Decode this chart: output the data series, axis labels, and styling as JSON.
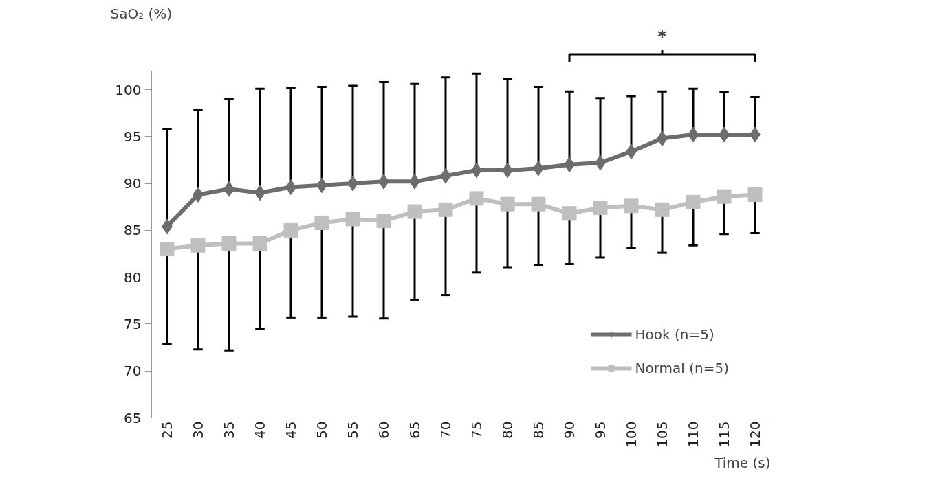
{
  "chart_data": {
    "type": "line",
    "xlabel": "Time (s)",
    "ylabel": "SaO₂ (%)",
    "categories": [
      "25",
      "30",
      "35",
      "40",
      "45",
      "50",
      "55",
      "60",
      "65",
      "70",
      "75",
      "80",
      "85",
      "90",
      "95",
      "100",
      "105",
      "110",
      "115",
      "120"
    ],
    "series": [
      {
        "name": "Hook (n=5)",
        "color": "#6d6d6d",
        "marker": "diamond",
        "values": [
          85.4,
          88.8,
          89.4,
          89.0,
          89.6,
          89.8,
          90.0,
          90.2,
          90.2,
          90.8,
          91.4,
          91.4,
          91.6,
          92.0,
          92.2,
          93.4,
          94.8,
          95.2,
          95.2,
          95.2
        ],
        "errors": [
          [
            85.4,
            95.8
          ],
          [
            88.8,
            97.8
          ],
          [
            89.4,
            99.0
          ],
          [
            89.0,
            100.1
          ],
          [
            89.6,
            100.2
          ],
          [
            89.8,
            100.3
          ],
          [
            90.0,
            100.4
          ],
          [
            90.2,
            100.8
          ],
          [
            90.2,
            100.6
          ],
          [
            90.8,
            101.3
          ],
          [
            91.4,
            101.7
          ],
          [
            91.4,
            101.1
          ],
          [
            91.6,
            100.3
          ],
          [
            92.0,
            99.8
          ],
          [
            92.2,
            99.1
          ],
          [
            93.4,
            99.3
          ],
          [
            94.8,
            99.8
          ],
          [
            95.2,
            100.1
          ],
          [
            95.2,
            99.7
          ],
          [
            95.2,
            99.2
          ]
        ]
      },
      {
        "name": "Normal (n=5)",
        "color": "#bfbfbf",
        "marker": "square",
        "values": [
          83.0,
          83.4,
          83.6,
          83.6,
          85.0,
          85.8,
          86.2,
          86.0,
          87.0,
          87.2,
          88.4,
          87.8,
          87.8,
          86.8,
          87.4,
          87.6,
          87.2,
          88.0,
          88.6,
          88.8
        ],
        "errors": [
          [
            72.9,
            83.0
          ],
          [
            72.3,
            83.4
          ],
          [
            72.2,
            83.6
          ],
          [
            74.5,
            83.6
          ],
          [
            75.7,
            85.0
          ],
          [
            75.7,
            85.8
          ],
          [
            75.8,
            86.2
          ],
          [
            75.6,
            86.0
          ],
          [
            77.6,
            87.0
          ],
          [
            78.1,
            87.2
          ],
          [
            80.5,
            88.4
          ],
          [
            81.0,
            87.8
          ],
          [
            81.3,
            87.8
          ],
          [
            81.4,
            86.8
          ],
          [
            82.1,
            87.4
          ],
          [
            83.1,
            87.6
          ],
          [
            82.6,
            87.2
          ],
          [
            83.4,
            88.0
          ],
          [
            84.6,
            88.6
          ],
          [
            84.7,
            88.8
          ]
        ]
      }
    ],
    "annotations": [
      "*"
    ],
    "ylim": [
      65,
      102
    ],
    "yticks": [
      65,
      70,
      75,
      80,
      85,
      90,
      95,
      100
    ],
    "grid": false,
    "legend": "bottom right",
    "line_style": "solid"
  }
}
